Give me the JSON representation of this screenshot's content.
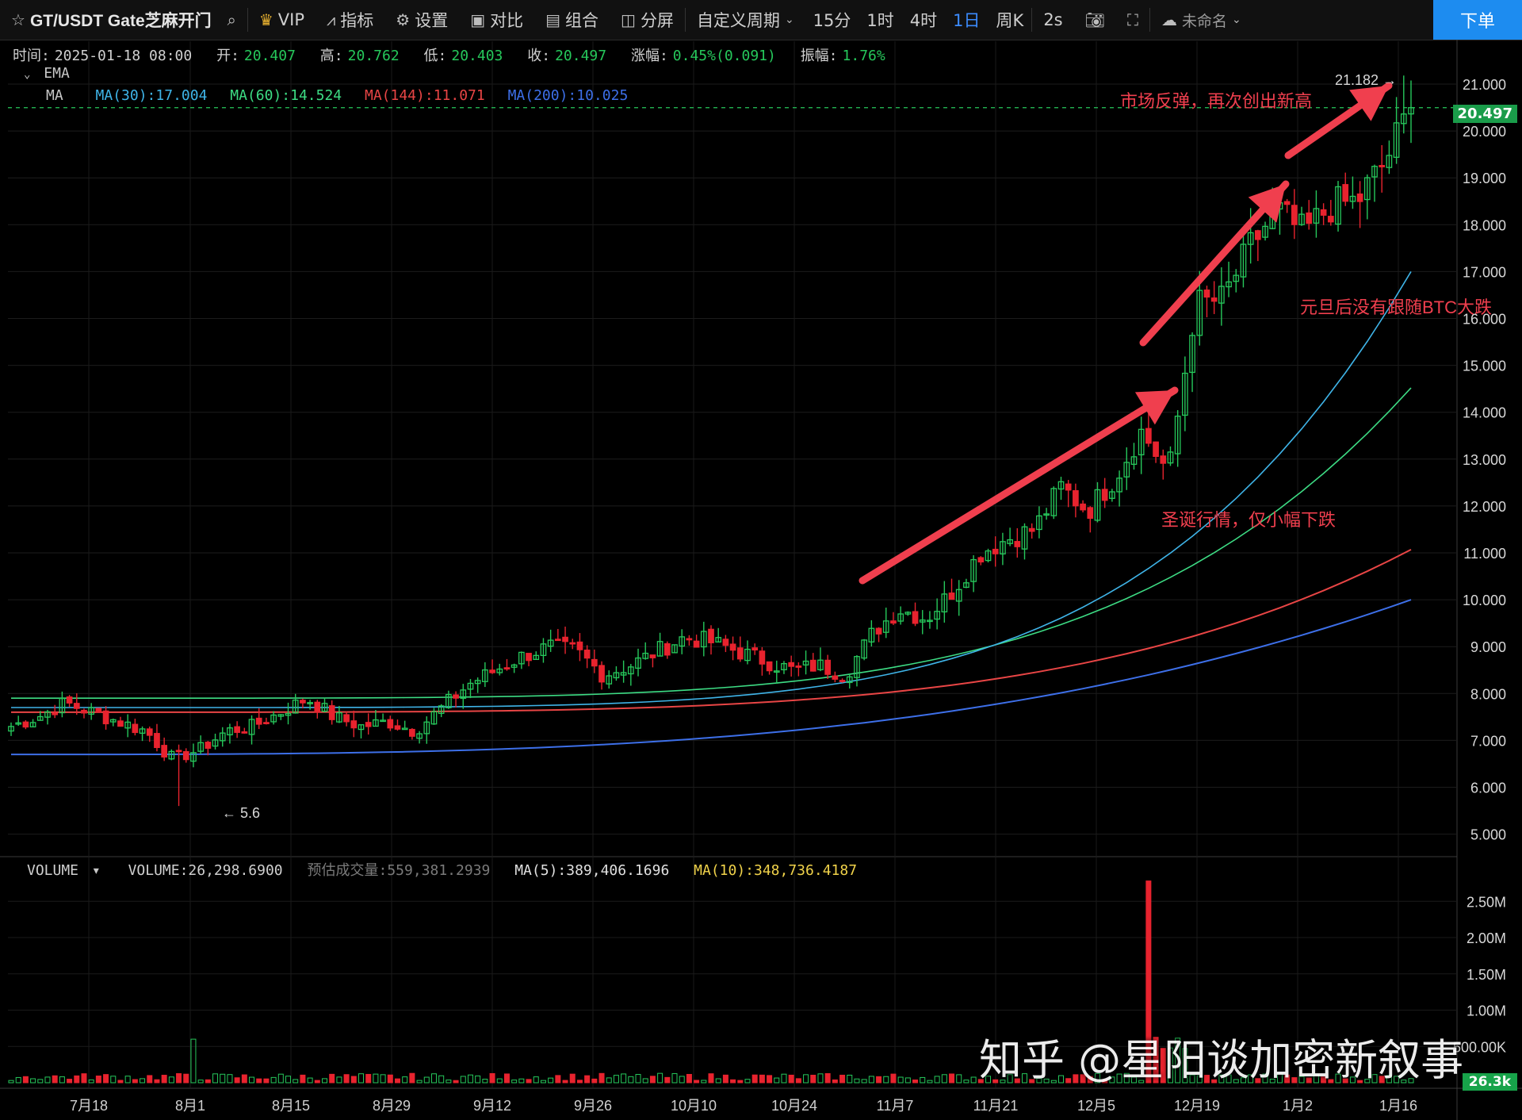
{
  "toolbar": {
    "symbol": "GT/USDT Gate芝麻开门",
    "vip": "VIP",
    "indicators": "指标",
    "settings": "设置",
    "compare": "对比",
    "combo": "组合",
    "split": "分屏",
    "custom_period": "自定义周期",
    "periods": [
      "15分",
      "1时",
      "4时",
      "1日",
      "周K"
    ],
    "active_period": "1日",
    "interval": "2s",
    "cloud_name": "未命名",
    "order": "下单"
  },
  "ohlc": {
    "time_label": "时间:",
    "time": "2025-01-18 08:00",
    "open_label": "开:",
    "open": "20.407",
    "high_label": "高:",
    "high": "20.762",
    "low_label": "低:",
    "low": "20.403",
    "close_label": "收:",
    "close": "20.497",
    "change_label": "涨幅:",
    "change": "0.45%(0.091)",
    "amp_label": "振幅:",
    "amp": "1.76%"
  },
  "legend": {
    "ema": "EMA",
    "ma": "MA",
    "ma30": "MA(30):17.004",
    "ma60": "MA(60):14.524",
    "ma144": "MA(144):11.071",
    "ma200": "MA(200):10.025"
  },
  "volume_legend": {
    "name": "VOLUME",
    "volume": "VOLUME:26,298.6900",
    "estimated": "预估成交量:559,381.2939",
    "ma5": "MA(5):389,406.1696",
    "ma10": "MA(10):348,736.4187"
  },
  "colors": {
    "up": "#26c85b",
    "down": "#e8232e",
    "ma30": "#3fb4e8",
    "ma60": "#3ddc84",
    "ma144": "#e84545",
    "ma200": "#3d6fe8",
    "ma5_vol": "#ffffff",
    "ma10_vol": "#f0d24a",
    "annotation": "#f03f4e"
  },
  "annotations": {
    "top": "市场反弹，再次创出新高",
    "right": "元旦后没有跟随BTC大跌",
    "mid": "圣诞行情，仅小幅下跌",
    "high_mark": "21.182 →",
    "low_mark": "← 5.6"
  },
  "watermark": "知乎 @星阳谈加密新叙事",
  "last_price": "20.497",
  "last_volume": "26.3k",
  "chart_data": {
    "type": "candlestick",
    "price_ticks": [
      "21.000",
      "20.000",
      "19.000",
      "18.000",
      "17.000",
      "16.000",
      "15.000",
      "14.000",
      "13.000",
      "12.000",
      "11.000",
      "10.000",
      "9.000",
      "8.000",
      "7.000",
      "6.000",
      "5.000"
    ],
    "volume_ticks": [
      "2.50M",
      "2.00M",
      "1.50M",
      "1.00M",
      "500.00K"
    ],
    "x_labels": [
      "7月18",
      "8月1",
      "8月15",
      "8月29",
      "9月12",
      "9月26",
      "10月10",
      "10月24",
      "11月7",
      "11月21",
      "12月5",
      "12月19",
      "1月2",
      "1月16"
    ],
    "ylim": [
      5,
      21.5
    ],
    "candles_note": "daily candles 2024-07-10 to 2025-01-18",
    "close_path": [
      7.3,
      7.5,
      7.8,
      7.6,
      7.4,
      7.2,
      6.6,
      6.8,
      7.2,
      7.3,
      7.6,
      7.9,
      7.5,
      7.3,
      7.4,
      7.2,
      7.7,
      8.2,
      8.5,
      8.8,
      9.0,
      8.9,
      8.4,
      8.6,
      8.9,
      9.2,
      9.1,
      8.9,
      8.7,
      8.5,
      8.6,
      8.4,
      9.3,
      9.8,
      9.6,
      10.2,
      11.0,
      11.3,
      11.5,
      12.4,
      11.9,
      12.6,
      13.6,
      12.7,
      16.3,
      16.4,
      17.5,
      18.3,
      17.8,
      18.4,
      18.5,
      19.3,
      20.5
    ],
    "volume_spike": {
      "date_label": "12月19",
      "value": "2.78M"
    }
  }
}
